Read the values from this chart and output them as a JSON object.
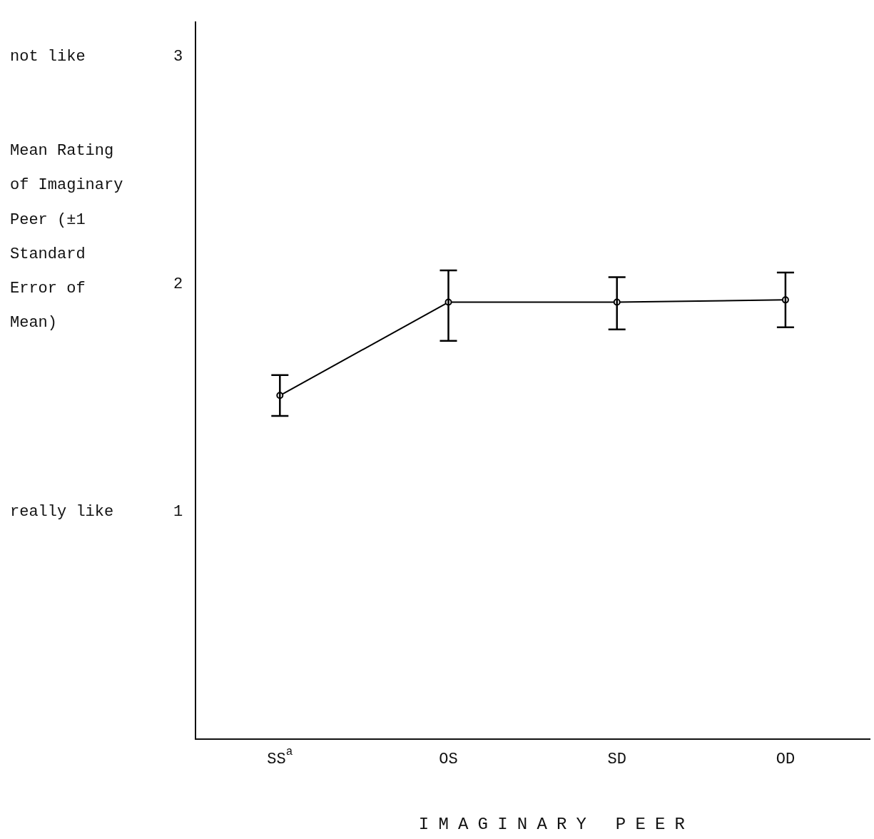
{
  "chart_data": {
    "type": "line",
    "xlabel": "IMAGINARY PEER",
    "ylabel": "Mean Rating of Imaginary Peer (±1 Standard Error of Mean)",
    "categories": [
      "SS$^{a}$",
      "OS",
      "SD",
      "OD"
    ],
    "values": [
      1.51,
      1.92,
      1.92,
      1.93
    ],
    "errors": [
      [
        1.42,
        1.6
      ],
      [
        1.75,
        2.06
      ],
      [
        1.8,
        2.03
      ],
      [
        1.81,
        2.05
      ]
    ],
    "color": "#000000",
    "marker": "circle",
    "line_style": "solid",
    "ylim": [
      0,
      3.15
    ],
    "yticks": [
      1,
      2,
      3
    ],
    "grid": false,
    "legend": false,
    "annotations": [
      "not like",
      "really like"
    ]
  }
}
